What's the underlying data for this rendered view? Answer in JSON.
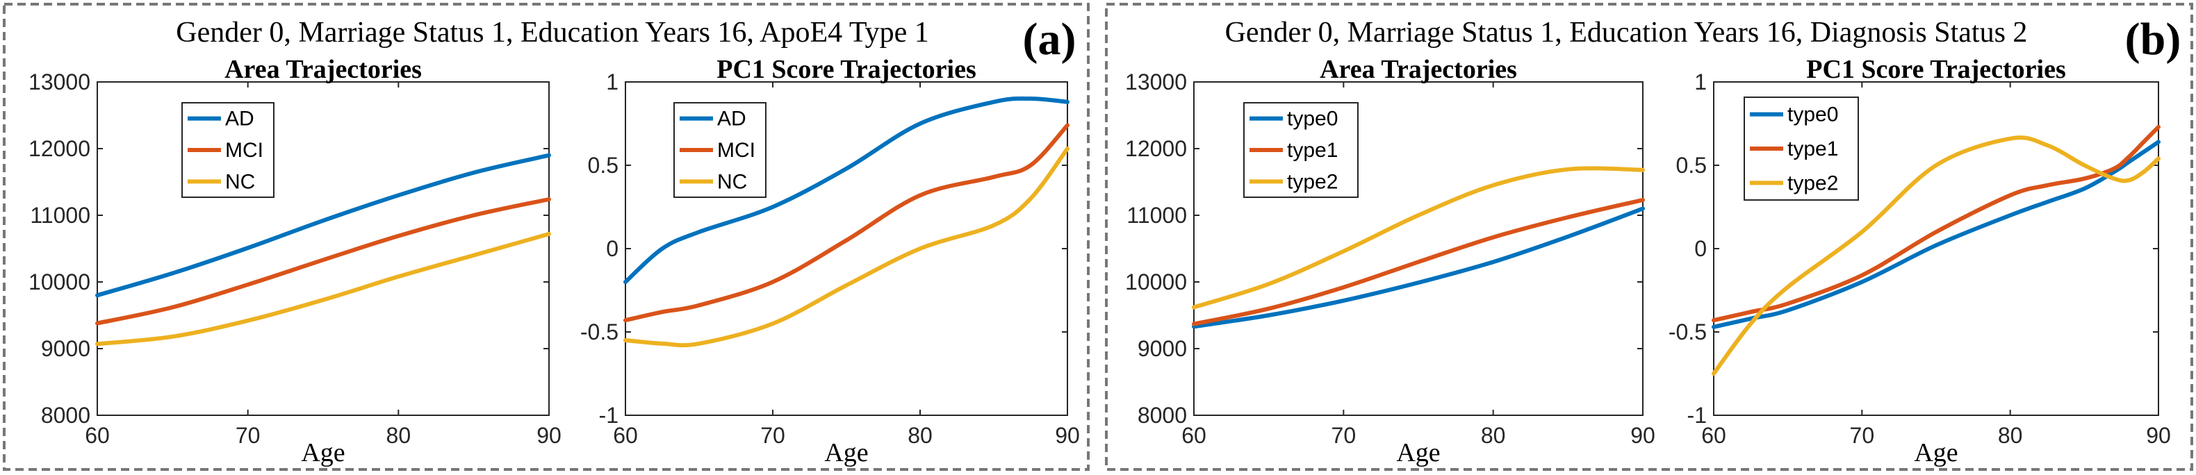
{
  "panels": [
    {
      "letter": "(a)",
      "title": "Gender 0, Marriage Status 1, Education Years 16, ApoE4 Type 1"
    },
    {
      "letter": "(b)",
      "title": "Gender 0, Marriage Status 1, Education Years 16, Diagnosis Status 2"
    }
  ],
  "colors": {
    "blue": "#0072BD",
    "orange": "#D95319",
    "yellow": "#EDB120"
  },
  "chart_data": [
    {
      "type": "line",
      "title": "Area Trajectories",
      "xlabel": "Age",
      "ylabel": "",
      "xlim": [
        60,
        90
      ],
      "ylim": [
        8000,
        13000
      ],
      "xticks": [
        60,
        70,
        80,
        90
      ],
      "yticks": [
        8000,
        9000,
        10000,
        11000,
        12000,
        13000
      ],
      "legend_position": "top-left",
      "x": [
        60,
        65,
        70,
        75,
        80,
        85,
        90
      ],
      "series": [
        {
          "name": "AD",
          "color": "#0072BD",
          "values": [
            9800,
            10130,
            10510,
            10920,
            11300,
            11640,
            11900
          ]
        },
        {
          "name": "MCI",
          "color": "#D95319",
          "values": [
            9380,
            9620,
            9960,
            10330,
            10690,
            11000,
            11240
          ]
        },
        {
          "name": "NC",
          "color": "#EDB120",
          "values": [
            9070,
            9180,
            9420,
            9730,
            10080,
            10400,
            10720
          ]
        }
      ]
    },
    {
      "type": "line",
      "title": "PC1 Score Trajectories",
      "xlabel": "Age",
      "ylabel": "",
      "xlim": [
        60,
        90
      ],
      "ylim": [
        -1,
        1
      ],
      "xticks": [
        60,
        70,
        80,
        90
      ],
      "yticks": [
        -1,
        -0.5,
        0,
        0.5,
        1
      ],
      "legend_position": "top-left",
      "x": [
        60,
        62.5,
        65,
        70,
        75,
        80,
        85,
        87.5,
        90
      ],
      "series": [
        {
          "name": "AD",
          "color": "#0072BD",
          "values": [
            -0.2,
            0.0,
            0.1,
            0.25,
            0.48,
            0.75,
            0.88,
            0.9,
            0.88
          ]
        },
        {
          "name": "MCI",
          "color": "#D95319",
          "values": [
            -0.43,
            -0.38,
            -0.34,
            -0.2,
            0.05,
            0.32,
            0.43,
            0.5,
            0.74
          ]
        },
        {
          "name": "NC",
          "color": "#EDB120",
          "values": [
            -0.55,
            -0.57,
            -0.57,
            -0.45,
            -0.22,
            0.0,
            0.14,
            0.3,
            0.6
          ]
        }
      ]
    },
    {
      "type": "line",
      "title": "Area Trajectories",
      "xlabel": "Age",
      "ylabel": "",
      "xlim": [
        60,
        90
      ],
      "ylim": [
        8000,
        13000
      ],
      "xticks": [
        60,
        70,
        80,
        90
      ],
      "yticks": [
        8000,
        9000,
        10000,
        11000,
        12000,
        13000
      ],
      "legend_position": "top-left",
      "x": [
        60,
        65,
        70,
        75,
        80,
        85,
        90
      ],
      "series": [
        {
          "name": "type0",
          "color": "#0072BD",
          "values": [
            9330,
            9500,
            9720,
            9990,
            10300,
            10680,
            11100
          ]
        },
        {
          "name": "type1",
          "color": "#D95319",
          "values": [
            9370,
            9600,
            9920,
            10300,
            10670,
            10970,
            11230
          ]
        },
        {
          "name": "type2",
          "color": "#EDB120",
          "values": [
            9620,
            9970,
            10460,
            11000,
            11450,
            11690,
            11680
          ]
        }
      ]
    },
    {
      "type": "line",
      "title": "PC1 Score Trajectories",
      "xlabel": "Age",
      "ylabel": "",
      "xlim": [
        60,
        90
      ],
      "ylim": [
        -1,
        1
      ],
      "xticks": [
        60,
        70,
        80,
        90
      ],
      "yticks": [
        -1,
        -0.5,
        0,
        0.5,
        1
      ],
      "legend_position": "top-left",
      "x": [
        60,
        62.5,
        65,
        70,
        75,
        80,
        82.5,
        85,
        87,
        88,
        89,
        90
      ],
      "series": [
        {
          "name": "type0",
          "color": "#0072BD",
          "values": [
            -0.47,
            -0.42,
            -0.37,
            -0.2,
            0.02,
            0.2,
            0.28,
            0.36,
            0.46,
            0.52,
            0.58,
            0.64
          ]
        },
        {
          "name": "type1",
          "color": "#D95319",
          "values": [
            -0.43,
            -0.38,
            -0.33,
            -0.16,
            0.1,
            0.32,
            0.38,
            0.42,
            0.48,
            0.55,
            0.64,
            0.73
          ]
        },
        {
          "name": "type2",
          "color": "#EDB120",
          "values": [
            -0.75,
            -0.45,
            -0.23,
            0.1,
            0.5,
            0.66,
            0.62,
            0.5,
            0.42,
            0.41,
            0.46,
            0.54
          ]
        }
      ]
    }
  ]
}
